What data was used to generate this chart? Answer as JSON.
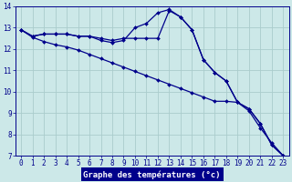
{
  "hours": [
    0,
    1,
    2,
    3,
    4,
    5,
    6,
    7,
    8,
    9,
    10,
    11,
    12,
    13,
    14,
    15,
    16,
    17,
    18,
    19,
    20,
    21,
    22,
    23
  ],
  "line1": [
    12.9,
    12.6,
    12.7,
    12.7,
    12.7,
    12.6,
    12.6,
    12.5,
    12.4,
    12.5,
    12.5,
    12.5,
    12.5,
    13.8,
    13.5,
    12.9,
    11.5,
    10.9,
    10.5,
    9.5,
    9.2,
    8.5,
    7.5,
    7.0
  ],
  "line2": [
    12.9,
    12.6,
    12.7,
    12.7,
    12.7,
    12.6,
    12.6,
    12.4,
    12.3,
    12.4,
    13.0,
    13.2,
    13.7,
    13.85,
    13.5,
    12.9,
    11.5,
    10.9,
    10.5,
    9.5,
    9.2,
    8.5,
    7.5,
    7.0
  ],
  "line3": [
    12.9,
    12.55,
    12.35,
    12.2,
    12.1,
    11.95,
    11.75,
    11.55,
    11.35,
    11.15,
    10.95,
    10.75,
    10.55,
    10.35,
    10.15,
    9.95,
    9.75,
    9.55,
    9.55,
    9.5,
    9.1,
    8.3,
    7.6,
    7.0
  ],
  "bg_color": "#cce8e8",
  "grid_color": "#aacccc",
  "line_color": "#00008b",
  "marker": "D",
  "marker_size": 2.0,
  "linewidth": 0.9,
  "ylim": [
    7,
    14
  ],
  "xlim": [
    -0.5,
    23.5
  ],
  "yticks": [
    7,
    8,
    9,
    10,
    11,
    12,
    13,
    14
  ],
  "xticks": [
    0,
    1,
    2,
    3,
    4,
    5,
    6,
    7,
    8,
    9,
    10,
    11,
    12,
    13,
    14,
    15,
    16,
    17,
    18,
    19,
    20,
    21,
    22,
    23
  ],
  "xlabel": "Graphe des températures (°c)",
  "xlabel_color": "#00008b",
  "xlabel_bg": "#0000aa",
  "tick_fontsize": 5.5,
  "label_fontsize": 6.5
}
